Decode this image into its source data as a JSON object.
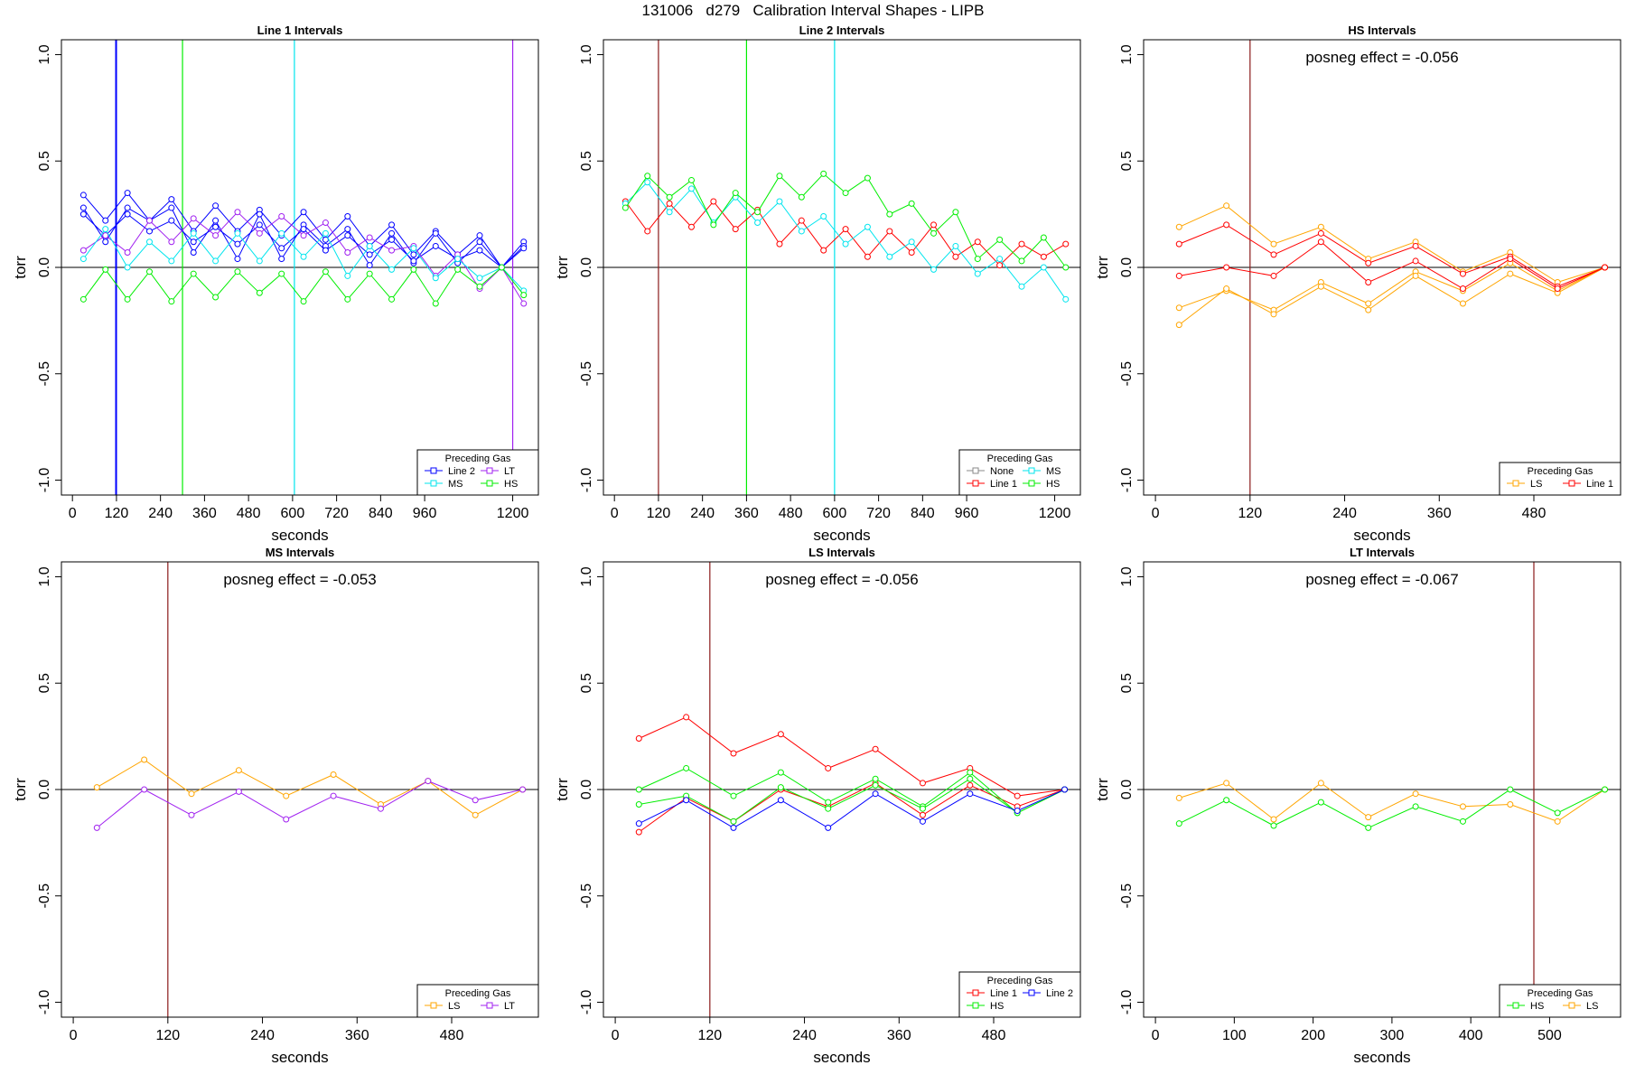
{
  "suptitle": "131006   d279   Calibration Interval Shapes - LIPB",
  "colors": {
    "Line 2": "#0000ff",
    "LT": "#a020f0",
    "MS": "#00e5ee",
    "HS": "#00ee00",
    "Line 1": "#ff0000",
    "LS": "#ffa500",
    "None": "#888888",
    "marker": "#8b1a1a"
  },
  "chart_data": [
    {
      "type": "line",
      "title": "Line 1 Intervals",
      "xlabel": "seconds",
      "ylabel": "torr",
      "xlim": [
        -30,
        1270
      ],
      "ylim": [
        -1.07,
        1.07
      ],
      "xticks": [
        0,
        120,
        240,
        360,
        480,
        600,
        720,
        840,
        960,
        1200
      ],
      "yticks": [
        -1.0,
        -0.5,
        0.0,
        0.5,
        1.0
      ],
      "hline": 0,
      "vlines": [
        {
          "x": 118,
          "color": "Line 2"
        },
        {
          "x": 120,
          "color": "Line 2"
        },
        {
          "x": 300,
          "color": "HS"
        },
        {
          "x": 605,
          "color": "MS"
        },
        {
          "x": 1200,
          "color": "LT"
        }
      ],
      "legend": {
        "title": "Preceding Gas",
        "position": "bottom-right",
        "items": [
          "Line 2",
          "LT",
          "MS",
          "HS"
        ],
        "cols": 2
      },
      "series": [
        {
          "color": "Line 2",
          "x": [
            30,
            90,
            150,
            210,
            270,
            330,
            390,
            450,
            510,
            570,
            630,
            690,
            750,
            810,
            870,
            930,
            990,
            1050,
            1110,
            1170,
            1230
          ],
          "y": [
            0.34,
            0.22,
            0.35,
            0.22,
            0.32,
            0.17,
            0.29,
            0.17,
            0.27,
            0.15,
            0.26,
            0.13,
            0.24,
            0.1,
            0.2,
            0.06,
            0.17,
            0.06,
            0.15,
            0.0,
            0.12
          ]
        },
        {
          "color": "Line 2",
          "x": [
            30,
            90,
            150,
            210,
            270,
            330,
            390,
            450,
            510,
            570,
            630,
            690,
            750,
            810,
            870,
            930,
            990,
            1050,
            1110,
            1170,
            1230
          ],
          "y": [
            0.28,
            0.12,
            0.28,
            0.22,
            0.28,
            0.07,
            0.22,
            0.04,
            0.25,
            0.04,
            0.2,
            0.1,
            0.18,
            0.01,
            0.16,
            0.02,
            0.16,
            0.02,
            0.12,
            0.0,
            0.1
          ]
        },
        {
          "color": "Line 2",
          "x": [
            30,
            90,
            150,
            210,
            270,
            330,
            390,
            450,
            510,
            570,
            630,
            690,
            750,
            810,
            870,
            930,
            990,
            1050,
            1110,
            1170,
            1230
          ],
          "y": [
            0.25,
            0.15,
            0.25,
            0.17,
            0.22,
            0.12,
            0.19,
            0.11,
            0.2,
            0.09,
            0.18,
            0.08,
            0.15,
            0.06,
            0.13,
            0.03,
            0.1,
            0.04,
            0.08,
            0.0,
            0.09
          ]
        },
        {
          "color": "LT",
          "x": [
            30,
            90,
            150,
            210,
            270,
            330,
            390,
            450,
            510,
            570,
            630,
            690,
            750,
            810,
            870,
            930,
            990,
            1050,
            1110,
            1170,
            1230
          ],
          "y": [
            0.08,
            0.15,
            0.07,
            0.22,
            0.12,
            0.23,
            0.15,
            0.26,
            0.16,
            0.24,
            0.15,
            0.21,
            0.07,
            0.14,
            0.08,
            0.1,
            -0.04,
            0.06,
            -0.1,
            0.0,
            -0.17
          ]
        },
        {
          "color": "MS",
          "x": [
            30,
            90,
            150,
            210,
            270,
            330,
            390,
            450,
            510,
            570,
            630,
            690,
            750,
            810,
            870,
            930,
            990,
            1050,
            1110,
            1170,
            1230
          ],
          "y": [
            0.04,
            0.18,
            0.0,
            0.12,
            0.03,
            0.16,
            0.03,
            0.16,
            0.03,
            0.16,
            0.05,
            0.16,
            -0.04,
            0.1,
            -0.01,
            0.09,
            -0.05,
            0.04,
            -0.05,
            0.0,
            -0.11
          ]
        },
        {
          "color": "HS",
          "x": [
            30,
            90,
            150,
            210,
            270,
            330,
            390,
            450,
            510,
            570,
            630,
            690,
            750,
            810,
            870,
            930,
            990,
            1050,
            1110,
            1170,
            1230
          ],
          "y": [
            -0.15,
            -0.01,
            -0.15,
            -0.02,
            -0.16,
            -0.03,
            -0.14,
            -0.02,
            -0.12,
            -0.03,
            -0.16,
            -0.02,
            -0.15,
            -0.03,
            -0.15,
            -0.01,
            -0.17,
            -0.01,
            -0.09,
            0.0,
            -0.13
          ]
        }
      ]
    },
    {
      "type": "line",
      "title": "Line 2 Intervals",
      "xlabel": "seconds",
      "ylabel": "torr",
      "xlim": [
        -30,
        1270
      ],
      "ylim": [
        -1.07,
        1.07
      ],
      "xticks": [
        0,
        120,
        240,
        360,
        480,
        600,
        720,
        840,
        960,
        1200
      ],
      "yticks": [
        -1.0,
        -0.5,
        0.0,
        0.5,
        1.0
      ],
      "hline": 0,
      "vlines": [
        {
          "x": 120,
          "color": "marker"
        },
        {
          "x": 360,
          "color": "HS"
        },
        {
          "x": 600,
          "color": "MS"
        }
      ],
      "legend": {
        "title": "Preceding Gas",
        "position": "bottom-right",
        "items": [
          "None",
          "MS",
          "Line 1",
          "HS"
        ],
        "cols": 2
      },
      "series": [
        {
          "color": "Line 1",
          "x": [
            30,
            90,
            150,
            210,
            270,
            330,
            390,
            450,
            510,
            570,
            630,
            690,
            750,
            810,
            870,
            930,
            990,
            1050,
            1110,
            1170,
            1230
          ],
          "y": [
            0.31,
            0.17,
            0.3,
            0.19,
            0.31,
            0.18,
            0.27,
            0.11,
            0.22,
            0.08,
            0.18,
            0.05,
            0.17,
            0.07,
            0.2,
            0.05,
            0.12,
            0.01,
            0.11,
            0.05,
            0.11
          ]
        },
        {
          "color": "MS",
          "x": [
            30,
            90,
            150,
            210,
            270,
            330,
            390,
            450,
            510,
            570,
            630,
            690,
            750,
            810,
            870,
            930,
            990,
            1050,
            1110,
            1170,
            1230
          ],
          "y": [
            0.3,
            0.4,
            0.26,
            0.37,
            0.21,
            0.33,
            0.21,
            0.31,
            0.17,
            0.24,
            0.11,
            0.19,
            0.05,
            0.12,
            -0.01,
            0.1,
            -0.03,
            0.04,
            -0.09,
            0.0,
            -0.15
          ]
        },
        {
          "color": "HS",
          "x": [
            30,
            90,
            150,
            210,
            270,
            330,
            390,
            450,
            510,
            570,
            630,
            690,
            750,
            810,
            870,
            930,
            990,
            1050,
            1110,
            1170,
            1230
          ],
          "y": [
            0.28,
            0.43,
            0.33,
            0.41,
            0.2,
            0.35,
            0.26,
            0.43,
            0.33,
            0.44,
            0.35,
            0.42,
            0.25,
            0.3,
            0.16,
            0.26,
            0.04,
            0.13,
            0.03,
            0.14,
            0.0
          ]
        }
      ]
    },
    {
      "type": "line",
      "title": "HS Intervals",
      "xlabel": "seconds",
      "ylabel": "torr",
      "xlim": [
        -15,
        590
      ],
      "ylim": [
        -1.07,
        1.07
      ],
      "xticks": [
        0,
        120,
        240,
        360,
        480
      ],
      "yticks": [
        -1.0,
        -0.5,
        0.0,
        0.5,
        1.0
      ],
      "hline": 0,
      "annotation": "posneg effect = -0.056",
      "vlines": [
        {
          "x": 120,
          "color": "marker"
        }
      ],
      "legend": {
        "title": "Preceding Gas",
        "position": "bottom-right",
        "items": [
          "LS",
          "Line 1"
        ],
        "cols": 2
      },
      "series": [
        {
          "color": "LS",
          "x": [
            30,
            90,
            150,
            210,
            270,
            330,
            390,
            450,
            510,
            570
          ],
          "y": [
            0.19,
            0.29,
            0.11,
            0.19,
            0.04,
            0.12,
            -0.02,
            0.07,
            -0.07,
            0.0
          ]
        },
        {
          "color": "LS",
          "x": [
            30,
            90,
            150,
            210,
            270,
            330,
            390,
            450,
            510,
            570
          ],
          "y": [
            -0.19,
            -0.11,
            -0.2,
            -0.07,
            -0.17,
            -0.02,
            -0.11,
            0.02,
            -0.11,
            0.0
          ]
        },
        {
          "color": "LS",
          "x": [
            30,
            90,
            150,
            210,
            270,
            330,
            390,
            450,
            510,
            570
          ],
          "y": [
            -0.27,
            -0.1,
            -0.22,
            -0.09,
            -0.2,
            -0.04,
            -0.17,
            -0.03,
            -0.12,
            0.0
          ]
        },
        {
          "color": "Line 1",
          "x": [
            30,
            90,
            150,
            210,
            270,
            330,
            390,
            450,
            510,
            570
          ],
          "y": [
            0.11,
            0.2,
            0.06,
            0.16,
            0.02,
            0.1,
            -0.03,
            0.05,
            -0.09,
            0.0
          ]
        },
        {
          "color": "Line 1",
          "x": [
            30,
            90,
            150,
            210,
            270,
            330,
            390,
            450,
            510,
            570
          ],
          "y": [
            -0.04,
            0.0,
            -0.04,
            0.12,
            -0.07,
            0.03,
            -0.1,
            0.04,
            -0.1,
            0.0
          ]
        }
      ]
    },
    {
      "type": "line",
      "title": "MS Intervals",
      "xlabel": "seconds",
      "ylabel": "torr",
      "xlim": [
        -15,
        590
      ],
      "ylim": [
        -1.07,
        1.07
      ],
      "xticks": [
        0,
        120,
        240,
        360,
        480
      ],
      "yticks": [
        -1.0,
        -0.5,
        0.0,
        0.5,
        1.0
      ],
      "hline": 0,
      "annotation": "posneg effect = -0.053",
      "vlines": [
        {
          "x": 120,
          "color": "marker"
        }
      ],
      "legend": {
        "title": "Preceding Gas",
        "position": "bottom-right",
        "items": [
          "LS",
          "LT"
        ],
        "cols": 2
      },
      "series": [
        {
          "color": "LS",
          "x": [
            30,
            90,
            150,
            210,
            270,
            330,
            390,
            450,
            510,
            570
          ],
          "y": [
            0.01,
            0.14,
            -0.02,
            0.09,
            -0.03,
            0.07,
            -0.07,
            0.04,
            -0.12,
            0.0
          ]
        },
        {
          "color": "LT",
          "x": [
            30,
            90,
            150,
            210,
            270,
            330,
            390,
            450,
            510,
            570
          ],
          "y": [
            -0.18,
            0.0,
            -0.12,
            -0.01,
            -0.14,
            -0.03,
            -0.09,
            0.04,
            -0.05,
            0.0
          ]
        }
      ]
    },
    {
      "type": "line",
      "title": "LS Intervals",
      "xlabel": "seconds",
      "ylabel": "torr",
      "xlim": [
        -15,
        590
      ],
      "ylim": [
        -1.07,
        1.07
      ],
      "xticks": [
        0,
        120,
        240,
        360,
        480
      ],
      "yticks": [
        -1.0,
        -0.5,
        0.0,
        0.5,
        1.0
      ],
      "hline": 0,
      "annotation": "posneg effect = -0.056",
      "vlines": [
        {
          "x": 120,
          "color": "marker"
        }
      ],
      "legend": {
        "title": "Preceding Gas",
        "position": "bottom-right",
        "items": [
          "Line 1",
          "Line 2",
          "HS"
        ],
        "cols": 2
      },
      "series": [
        {
          "color": "Line 1",
          "x": [
            30,
            90,
            150,
            210,
            270,
            330,
            390,
            450,
            510,
            570
          ],
          "y": [
            0.24,
            0.34,
            0.17,
            0.26,
            0.1,
            0.19,
            0.03,
            0.1,
            -0.03,
            0.0
          ]
        },
        {
          "color": "Line 1",
          "x": [
            30,
            90,
            150,
            210,
            270,
            330,
            390,
            450,
            510,
            570
          ],
          "y": [
            -0.2,
            -0.04,
            -0.15,
            0.0,
            -0.08,
            0.03,
            -0.12,
            0.02,
            -0.08,
            0.0
          ]
        },
        {
          "color": "HS",
          "x": [
            30,
            90,
            150,
            210,
            270,
            330,
            390,
            450,
            510,
            570
          ],
          "y": [
            0.0,
            0.1,
            -0.03,
            0.08,
            -0.06,
            0.05,
            -0.08,
            0.08,
            -0.11,
            0.0
          ]
        },
        {
          "color": "HS",
          "x": [
            30,
            90,
            150,
            210,
            270,
            330,
            390,
            450,
            510,
            570
          ],
          "y": [
            -0.07,
            -0.03,
            -0.15,
            0.01,
            -0.09,
            0.02,
            -0.09,
            0.05,
            -0.11,
            0.0
          ]
        },
        {
          "color": "Line 2",
          "x": [
            30,
            90,
            150,
            210,
            270,
            330,
            390,
            450,
            510,
            570
          ],
          "y": [
            -0.16,
            -0.05,
            -0.18,
            -0.05,
            -0.18,
            -0.02,
            -0.15,
            -0.02,
            -0.1,
            0.0
          ]
        }
      ]
    },
    {
      "type": "line",
      "title": "LT Intervals",
      "xlabel": "seconds",
      "ylabel": "torr",
      "xlim": [
        -15,
        590
      ],
      "ylim": [
        -1.07,
        1.07
      ],
      "xticks": [
        0,
        100,
        200,
        300,
        400,
        500
      ],
      "yticks": [
        -1.0,
        -0.5,
        0.0,
        0.5,
        1.0
      ],
      "hline": 0,
      "annotation": "posneg effect = -0.067",
      "vlines": [
        {
          "x": 480,
          "color": "marker"
        }
      ],
      "legend": {
        "title": "Preceding Gas",
        "position": "bottom-right",
        "items": [
          "HS",
          "LS"
        ],
        "cols": 2
      },
      "series": [
        {
          "color": "LS",
          "x": [
            30,
            90,
            150,
            210,
            270,
            330,
            390,
            450,
            510,
            570
          ],
          "y": [
            -0.04,
            0.03,
            -0.14,
            0.03,
            -0.13,
            -0.02,
            -0.08,
            -0.07,
            -0.15,
            0.0
          ]
        },
        {
          "color": "HS",
          "x": [
            30,
            90,
            150,
            210,
            270,
            330,
            390,
            450,
            510,
            570
          ],
          "y": [
            -0.16,
            -0.05,
            -0.17,
            -0.06,
            -0.18,
            -0.08,
            -0.15,
            0.0,
            -0.11,
            0.0
          ]
        }
      ]
    }
  ]
}
